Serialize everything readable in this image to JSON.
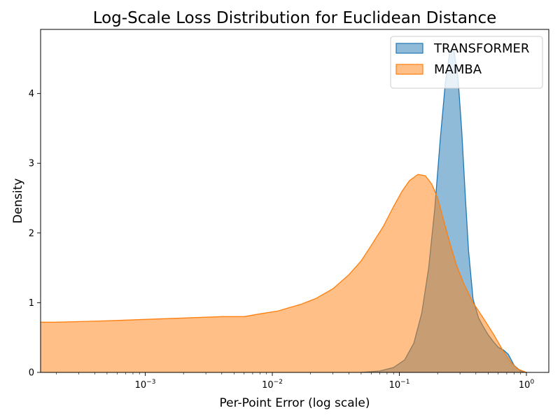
{
  "chart_data": {
    "type": "area",
    "title": "Log-Scale Loss Distribution for Euclidean Distance",
    "xlabel": "Per-Point Error (log scale)",
    "ylabel": "Density",
    "xscale": "log",
    "xlim": [
      0.00015,
      1.5
    ],
    "ylim": [
      0,
      4.92
    ],
    "x_ticks": [
      {
        "value": 0.001,
        "base": "10",
        "exp": "−3"
      },
      {
        "value": 0.01,
        "base": "10",
        "exp": "−2"
      },
      {
        "value": 0.1,
        "base": "10",
        "exp": "−1"
      },
      {
        "value": 1,
        "base": "10",
        "exp": "0"
      }
    ],
    "y_ticks": [
      0,
      1,
      2,
      3,
      4
    ],
    "legend_position": "top-right",
    "grid": false,
    "series": [
      {
        "name": "TRANSFORMER",
        "fill": "#1f77b4",
        "stroke": "#1f77b4",
        "x": [
          0.05,
          0.07,
          0.09,
          0.11,
          0.13,
          0.15,
          0.17,
          0.19,
          0.21,
          0.23,
          0.25,
          0.27,
          0.29,
          0.31,
          0.33,
          0.35,
          0.38,
          0.42,
          0.46,
          0.5,
          0.55,
          0.6,
          0.66,
          0.72,
          0.8,
          0.9,
          1.0
        ],
        "y": [
          0.0,
          0.02,
          0.07,
          0.18,
          0.42,
          0.85,
          1.5,
          2.35,
          3.35,
          4.15,
          4.62,
          4.6,
          4.2,
          3.45,
          2.55,
          1.75,
          1.05,
          0.78,
          0.65,
          0.54,
          0.44,
          0.36,
          0.32,
          0.26,
          0.1,
          0.02,
          0.0
        ]
      },
      {
        "name": "MAMBA",
        "fill": "#ff7f0e",
        "stroke": "#ff7f0e",
        "x": [
          0.00015,
          0.0002,
          0.0005,
          0.001,
          0.002,
          0.004,
          0.006,
          0.008,
          0.011,
          0.017,
          0.022,
          0.03,
          0.04,
          0.05,
          0.06,
          0.075,
          0.09,
          0.105,
          0.12,
          0.14,
          0.16,
          0.18,
          0.2,
          0.22,
          0.25,
          0.28,
          0.32,
          0.38,
          0.45,
          0.55,
          0.65,
          0.75,
          0.85,
          1.0
        ],
        "y": [
          0.72,
          0.72,
          0.74,
          0.76,
          0.78,
          0.8,
          0.8,
          0.84,
          0.88,
          0.98,
          1.06,
          1.2,
          1.4,
          1.6,
          1.82,
          2.1,
          2.38,
          2.6,
          2.75,
          2.84,
          2.82,
          2.7,
          2.5,
          2.22,
          1.85,
          1.55,
          1.28,
          1.0,
          0.8,
          0.55,
          0.32,
          0.15,
          0.05,
          0.0
        ]
      }
    ]
  }
}
